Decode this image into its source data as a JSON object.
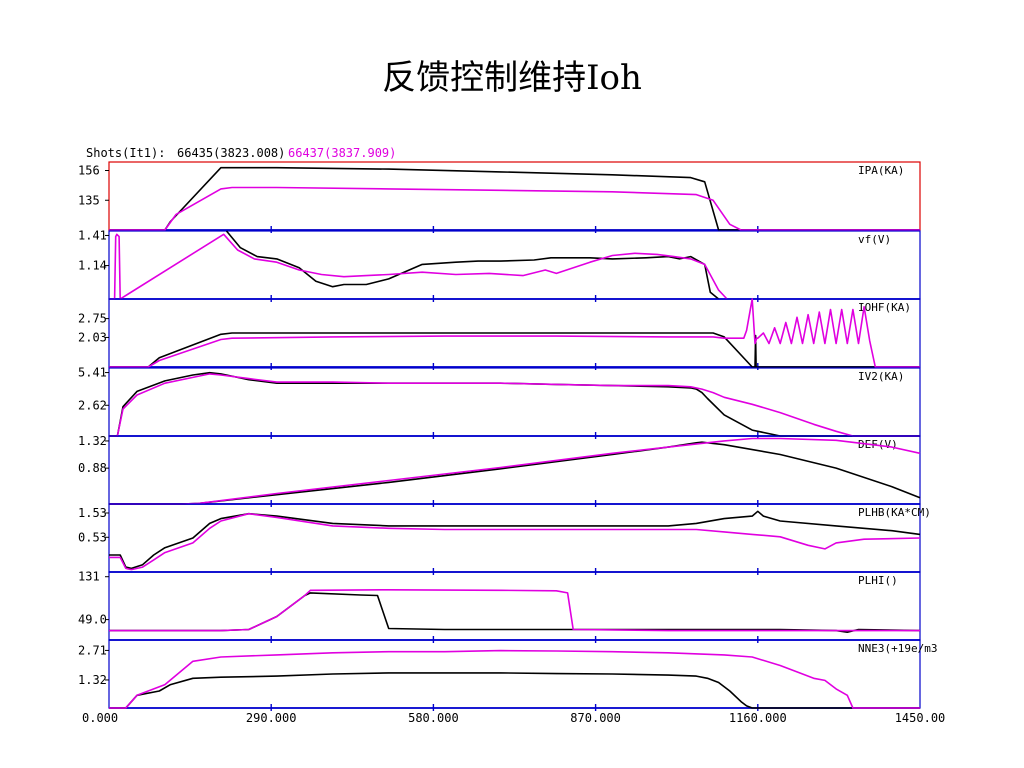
{
  "page_title": "反馈控制维持Ioh",
  "header": {
    "label": "Shots(It1):",
    "shots": [
      {
        "text": "66435(3823.008)",
        "color": "#000000"
      },
      {
        "text": "66437(3837.909)",
        "color": "#E000E0"
      }
    ]
  },
  "colors": {
    "shot1": "#000000",
    "shot2": "#E000E0",
    "axis": "#0000CC",
    "highlight": "#DD0000"
  },
  "chart_data": {
    "type": "line",
    "xlim": [
      0,
      1450
    ],
    "x_ticks": [
      "0.000",
      "290.000",
      "580.000",
      "870.000",
      "1160.000",
      "1450.00"
    ],
    "x_tick_values": [
      0,
      290,
      580,
      870,
      1160,
      1450
    ],
    "panels": [
      {
        "label": "IPA(KA)",
        "ytick_labels": [
          "156",
          "135"
        ],
        "ytick_values": [
          156,
          135
        ],
        "ylim": [
          114,
          162
        ],
        "highlighted": true,
        "series": [
          {
            "x": [
              0,
              100,
              110,
              200,
              220,
              300,
              500,
              700,
              900,
              1040,
              1065,
              1090,
              1110,
              1450
            ],
            "y": [
              114,
              114,
              120,
              158,
              158,
              158,
              157,
              155,
              153,
              151,
              148,
              114,
              114,
              114
            ]
          },
          {
            "x": [
              0,
              100,
              120,
              200,
              220,
              300,
              500,
              700,
              900,
              1050,
              1080,
              1110,
              1130,
              1450
            ],
            "y": [
              114,
              114,
              125,
              143,
              144,
              144,
              143,
              142,
              141,
              139,
              135,
              118,
              114,
              114
            ]
          }
        ]
      },
      {
        "label": "vf(V)",
        "ytick_labels": [
          "1.41",
          "1.14"
        ],
        "ytick_values": [
          1.41,
          1.14
        ],
        "ylim": [
          0.84,
          1.45
        ],
        "series": [
          {
            "x": [
              210,
              235,
              265,
              300,
              340,
              370,
              400,
              420,
              460,
              500,
              560,
              620,
              660,
              700,
              760,
              790,
              860,
              900,
              960,
              1000,
              1020,
              1040,
              1065,
              1075,
              1090
            ],
            "y": [
              1.45,
              1.3,
              1.22,
              1.2,
              1.12,
              1.0,
              0.95,
              0.97,
              0.97,
              1.02,
              1.15,
              1.17,
              1.18,
              1.18,
              1.19,
              1.21,
              1.21,
              1.2,
              1.21,
              1.22,
              1.2,
              1.22,
              1.15,
              0.9,
              0.84
            ]
          },
          {
            "x": [
              0,
              10,
              12,
              14,
              18,
              20,
              205,
              230,
              260,
              300,
              340,
              380,
              420,
              460,
              500,
              560,
              620,
              680,
              740,
              780,
              800,
              860,
              900,
              940,
              980,
              1010,
              1040,
              1065,
              1090,
              1105
            ],
            "y": [
              0.84,
              0.84,
              1.4,
              1.42,
              1.4,
              0.84,
              1.42,
              1.28,
              1.2,
              1.17,
              1.1,
              1.06,
              1.04,
              1.05,
              1.06,
              1.08,
              1.06,
              1.07,
              1.05,
              1.1,
              1.07,
              1.17,
              1.23,
              1.25,
              1.24,
              1.22,
              1.2,
              1.15,
              0.92,
              0.84
            ]
          }
        ]
      },
      {
        "label": "IOHF(KA)",
        "ytick_labels": [
          "2.75",
          "2.03"
        ],
        "ytick_values": [
          2.75,
          2.03
        ],
        "ylim": [
          0.9,
          3.5
        ],
        "series": [
          {
            "x": [
              0,
              70,
              90,
              200,
              220,
              400,
              600,
              800,
              1000,
              1080,
              1100,
              1150,
              1155,
              1156,
              1157,
              1158,
              1450
            ],
            "y": [
              0.9,
              0.9,
              1.25,
              2.15,
              2.2,
              2.2,
              2.2,
              2.2,
              2.2,
              2.2,
              2.05,
              0.9,
              0.9,
              2.1,
              0.9,
              0.9,
              0.9
            ]
          },
          {
            "x": [
              0,
              70,
              90,
              200,
              220,
              400,
              600,
              800,
              1000,
              1080,
              1100,
              1120,
              1135,
              1140,
              1145,
              1150,
              1155,
              1158,
              1160,
              1170,
              1180,
              1190,
              1200,
              1210,
              1220,
              1230,
              1240,
              1250,
              1260,
              1270,
              1280,
              1290,
              1300,
              1310,
              1320,
              1330,
              1340,
              1350,
              1360,
              1370,
              1450
            ],
            "y": [
              0.9,
              0.9,
              1.15,
              1.95,
              2.0,
              2.05,
              2.08,
              2.08,
              2.05,
              2.05,
              2.0,
              2.0,
              2.0,
              2.3,
              2.9,
              3.5,
              1.8,
              2.0,
              2.0,
              2.2,
              1.8,
              2.4,
              1.8,
              2.6,
              1.8,
              2.8,
              1.8,
              2.9,
              1.8,
              3.0,
              1.8,
              3.1,
              1.8,
              3.1,
              1.8,
              3.1,
              1.8,
              3.2,
              1.9,
              0.9,
              0.9
            ]
          }
        ]
      },
      {
        "label": "IV2(KA)",
        "ytick_labels": [
          "5.41",
          "2.62"
        ],
        "ytick_values": [
          5.41,
          2.62
        ],
        "ylim": [
          0.0,
          5.8
        ],
        "series": [
          {
            "x": [
              0,
              15,
              25,
              50,
              100,
              150,
              180,
              200,
              250,
              300,
              400,
              500,
              600,
              700,
              800,
              900,
              1000,
              1040,
              1050,
              1060,
              1070,
              1100,
              1150,
              1200,
              1300,
              1450
            ],
            "y": [
              0.0,
              0.0,
              2.5,
              3.8,
              4.7,
              5.2,
              5.4,
              5.3,
              4.8,
              4.5,
              4.5,
              4.5,
              4.5,
              4.5,
              4.4,
              4.3,
              4.2,
              4.1,
              4.0,
              3.7,
              3.2,
              1.8,
              0.5,
              0.0,
              0.0,
              0.0
            ]
          },
          {
            "x": [
              0,
              15,
              25,
              50,
              100,
              150,
              180,
              200,
              250,
              300,
              400,
              500,
              600,
              700,
              800,
              900,
              1000,
              1040,
              1060,
              1080,
              1100,
              1150,
              1200,
              1260,
              1300,
              1330,
              1450
            ],
            "y": [
              0.0,
              0.0,
              2.3,
              3.5,
              4.5,
              5.0,
              5.3,
              5.2,
              4.9,
              4.6,
              4.6,
              4.5,
              4.5,
              4.5,
              4.4,
              4.3,
              4.3,
              4.2,
              4.0,
              3.7,
              3.3,
              2.7,
              2.0,
              1.0,
              0.4,
              0.0,
              0.0
            ]
          }
        ]
      },
      {
        "label": "DEF(V)",
        "ytick_labels": [
          "1.32",
          "0.88"
        ],
        "ytick_values": [
          1.32,
          0.88
        ],
        "ylim": [
          0.3,
          1.4
        ],
        "series": [
          {
            "x": [
              0,
              130,
              160,
              300,
              500,
              700,
              900,
              1000,
              1050,
              1060,
              1100,
              1200,
              1300,
              1400,
              1450
            ],
            "y": [
              0.3,
              0.3,
              0.31,
              0.45,
              0.65,
              0.87,
              1.1,
              1.22,
              1.29,
              1.3,
              1.26,
              1.1,
              0.88,
              0.58,
              0.4
            ]
          },
          {
            "x": [
              0,
              130,
              160,
              300,
              500,
              700,
              900,
              1000,
              1100,
              1150,
              1200,
              1300,
              1400,
              1450
            ],
            "y": [
              0.3,
              0.3,
              0.31,
              0.47,
              0.68,
              0.89,
              1.12,
              1.22,
              1.32,
              1.36,
              1.36,
              1.33,
              1.22,
              1.12
            ]
          }
        ]
      },
      {
        "label": "PLHB(KA*CM)",
        "ytick_labels": [
          "1.53",
          "0.53"
        ],
        "ytick_values": [
          1.53,
          0.53
        ],
        "ylim": [
          -0.9,
          1.9
        ],
        "series": [
          {
            "x": [
              0,
              20,
              30,
              40,
              60,
              80,
              100,
              150,
              180,
              200,
              250,
              300,
              400,
              500,
              600,
              800,
              1000,
              1050,
              1100,
              1150,
              1160,
              1170,
              1200,
              1300,
              1400,
              1450
            ],
            "y": [
              -0.2,
              -0.2,
              -0.7,
              -0.75,
              -0.6,
              -0.2,
              0.1,
              0.5,
              1.1,
              1.3,
              1.5,
              1.4,
              1.1,
              1.0,
              1.0,
              1.0,
              1.0,
              1.1,
              1.3,
              1.4,
              1.6,
              1.4,
              1.2,
              1.0,
              0.8,
              0.65
            ]
          },
          {
            "x": [
              0,
              20,
              30,
              40,
              60,
              80,
              100,
              150,
              180,
              200,
              250,
              300,
              400,
              500,
              600,
              800,
              1000,
              1050,
              1100,
              1150,
              1200,
              1250,
              1280,
              1300,
              1350,
              1450
            ],
            "y": [
              -0.3,
              -0.3,
              -0.75,
              -0.8,
              -0.7,
              -0.4,
              -0.1,
              0.3,
              0.9,
              1.2,
              1.5,
              1.35,
              1.0,
              0.9,
              0.85,
              0.85,
              0.85,
              0.85,
              0.75,
              0.65,
              0.55,
              0.2,
              0.05,
              0.3,
              0.45,
              0.5
            ]
          }
        ]
      },
      {
        "label": "PLHI()",
        "ytick_labels": [
          "131",
          "49.0"
        ],
        "ytick_values": [
          131,
          49.0
        ],
        "ylim": [
          10,
          140
        ],
        "series": [
          {
            "x": [
              0,
              150,
              200,
              250,
              300,
              350,
              360,
              450,
              480,
              500,
              600,
              800,
              1000,
              1200,
              1300,
              1320,
              1340,
              1450
            ],
            "y": [
              28,
              28,
              28,
              30,
              55,
              95,
              100,
              96,
              95,
              32,
              30,
              30,
              30,
              30,
              28,
              25,
              30,
              28
            ]
          },
          {
            "x": [
              0,
              150,
              200,
              250,
              300,
              350,
              360,
              500,
              700,
              800,
              820,
              830,
              1000,
              1200,
              1450
            ],
            "y": [
              28,
              28,
              28,
              30,
              55,
              95,
              105,
              106,
              105,
              104,
              100,
              30,
              28,
              28,
              28
            ]
          }
        ]
      },
      {
        "label": "NNE3(+19e/m3",
        "ytick_labels": [
          "2.71",
          "1.32"
        ],
        "ytick_values": [
          2.71,
          1.32
        ],
        "ylim": [
          0.0,
          3.2
        ],
        "series": [
          {
            "x": [
              0,
              30,
              50,
              90,
              110,
              150,
              200,
              300,
              400,
              500,
              600,
              700,
              800,
              900,
              1000,
              1050,
              1070,
              1090,
              1100,
              1110,
              1130,
              1140,
              1150,
              1450
            ],
            "y": [
              0.0,
              0.0,
              0.6,
              0.8,
              1.1,
              1.4,
              1.45,
              1.5,
              1.6,
              1.65,
              1.65,
              1.65,
              1.62,
              1.6,
              1.55,
              1.5,
              1.4,
              1.2,
              1.0,
              0.8,
              0.3,
              0.1,
              0.0,
              0.0
            ]
          },
          {
            "x": [
              0,
              30,
              50,
              100,
              150,
              200,
              300,
              400,
              500,
              600,
              700,
              800,
              900,
              1000,
              1100,
              1150,
              1200,
              1230,
              1260,
              1280,
              1300,
              1320,
              1330,
              1450
            ],
            "y": [
              0.0,
              0.0,
              0.6,
              1.1,
              2.2,
              2.4,
              2.5,
              2.6,
              2.65,
              2.65,
              2.7,
              2.68,
              2.65,
              2.6,
              2.5,
              2.4,
              2.0,
              1.7,
              1.4,
              1.3,
              0.9,
              0.6,
              0.0,
              0.0
            ]
          }
        ]
      }
    ]
  }
}
